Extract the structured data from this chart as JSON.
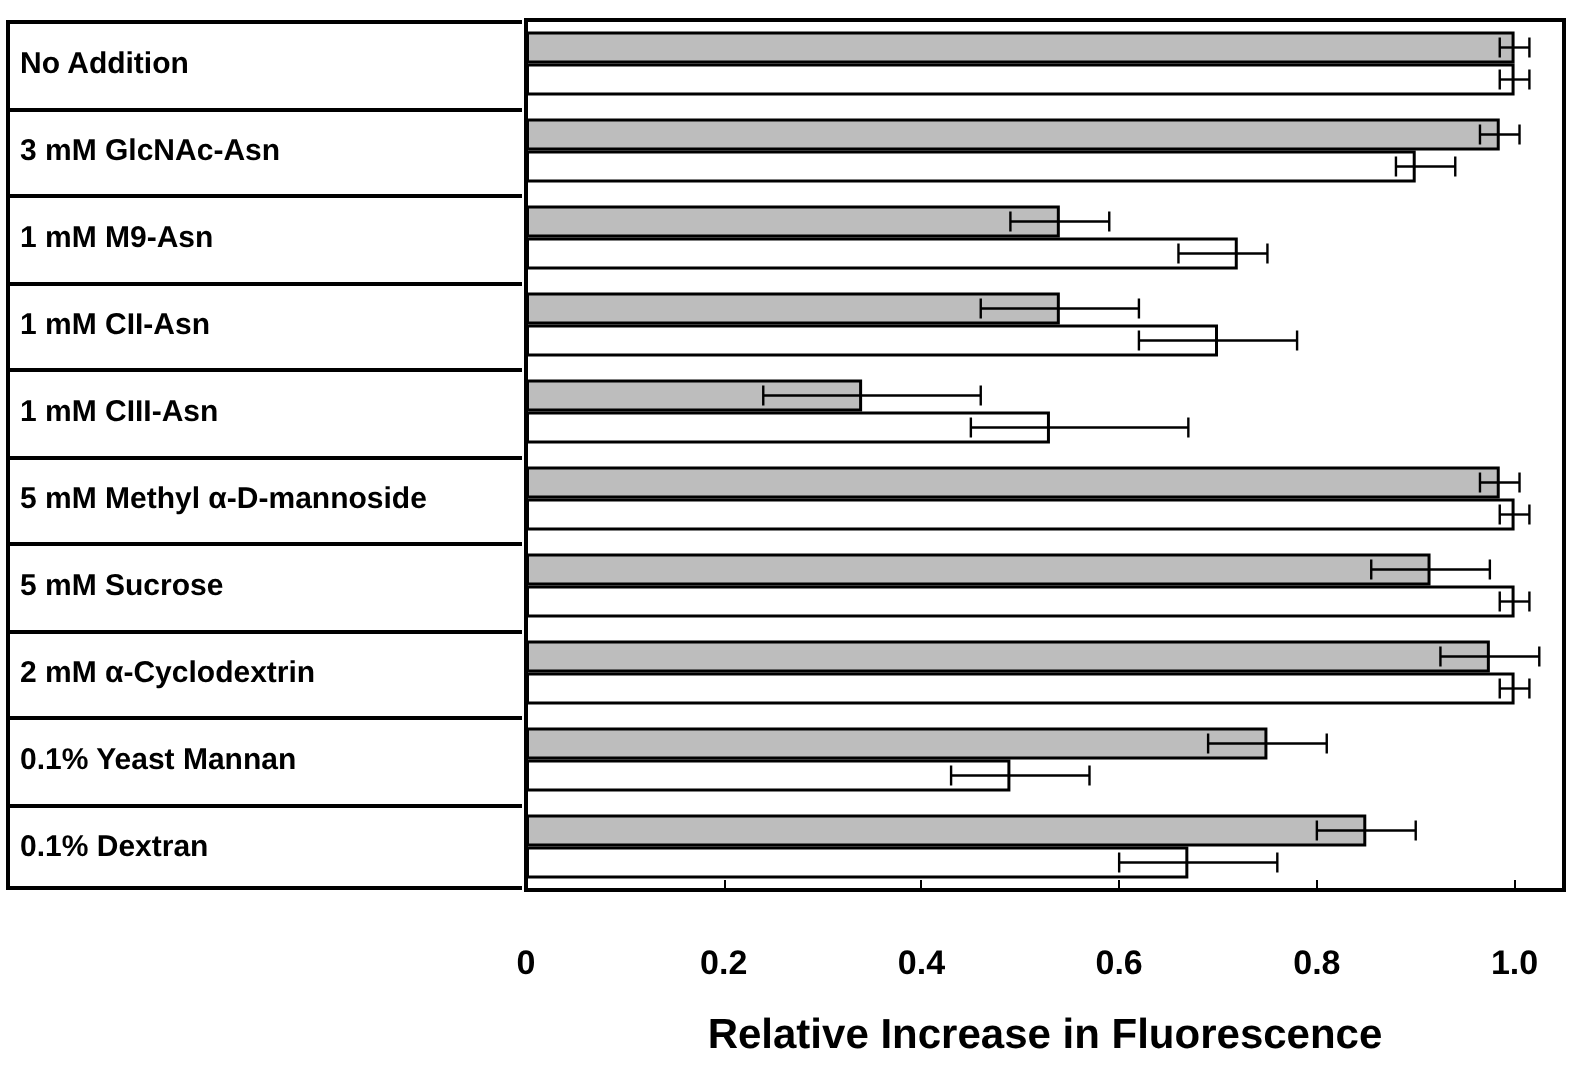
{
  "chart_data": {
    "type": "bar",
    "orientation": "horizontal",
    "xlabel": "Relative Increase in Fluorescence",
    "categories": [
      "No Addition",
      "3 mM GlcNAc-Asn",
      "1 mM M9-Asn",
      "1 mM CII-Asn",
      "1 mM CIII-Asn",
      "5 mM Methyl α-D-mannoside",
      "5 mM Sucrose",
      "2 mM α-Cyclodextrin",
      "0.1% Yeast Mannan",
      "0.1% Dextran"
    ],
    "series": [
      {
        "color": "#bdbdbd",
        "values": [
          1.0,
          0.985,
          0.54,
          0.54,
          0.34,
          0.985,
          0.915,
          0.975,
          0.75,
          0.85
        ],
        "errors": [
          0.015,
          0.02,
          0.05,
          0.08,
          [
            0.24,
            0.46
          ],
          0.02,
          0.06,
          0.05,
          0.06,
          0.05
        ]
      },
      {
        "color": "#ffffff",
        "values": [
          1.0,
          0.9,
          0.72,
          0.7,
          0.53,
          1.0,
          1.0,
          1.0,
          0.49,
          0.67
        ],
        "errors": [
          0.015,
          [
            0.88,
            0.94
          ],
          [
            0.66,
            0.75
          ],
          0.08,
          [
            0.45,
            0.67
          ],
          0.015,
          0.015,
          0.015,
          [
            0.43,
            0.57
          ],
          [
            0.6,
            0.76
          ]
        ]
      }
    ],
    "xlim": [
      0,
      1.05
    ],
    "xticks": [
      0,
      0.2,
      0.4,
      0.6,
      0.8,
      {
        "value": 1.0,
        "label": "1.0"
      }
    ],
    "grid": false
  }
}
